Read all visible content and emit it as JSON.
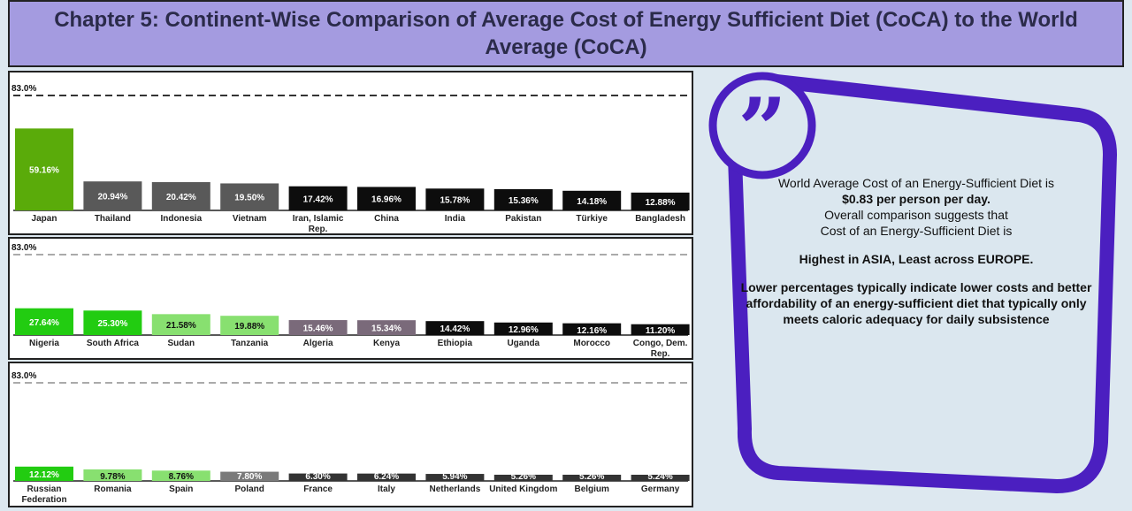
{
  "title": "Chapter 5: Continent-Wise Comparison of Average Cost of Energy Sufficient Diet (CoCA) to the World Average (CoCA)",
  "colors": {
    "title_bg": "#a49be0",
    "accent_purple": "#4b1fc0",
    "reference_line": "#333333"
  },
  "chart_data": [
    {
      "type": "bar",
      "reference_line": {
        "value": 83.0,
        "label": "83.0%"
      },
      "ylim": [
        0,
        83
      ],
      "categories": [
        "Japan",
        "Thailand",
        "Indonesia",
        "Vietnam",
        "Iran, Islamic Rep.",
        "China",
        "India",
        "Pakistan",
        "Türkiye",
        "Bangladesh"
      ],
      "values": [
        59.16,
        20.94,
        20.42,
        19.5,
        17.42,
        16.96,
        15.78,
        15.36,
        14.18,
        12.88
      ],
      "labels": [
        "59.16%",
        "20.94%",
        "20.42%",
        "19.50%",
        "17.42%",
        "16.96%",
        "15.78%",
        "15.36%",
        "14.18%",
        "12.88%"
      ],
      "bar_colors": [
        "#5aab0a",
        "#595959",
        "#595959",
        "#595959",
        "#0d0d0d",
        "#0d0d0d",
        "#0d0d0d",
        "#0d0d0d",
        "#0d0d0d",
        "#0d0d0d"
      ]
    },
    {
      "type": "bar",
      "reference_line": {
        "value": 83.0,
        "label": "83.0%"
      },
      "ylim": [
        0,
        83
      ],
      "categories": [
        "Nigeria",
        "South Africa",
        "Sudan",
        "Tanzania",
        "Algeria",
        "Kenya",
        "Ethiopia",
        "Uganda",
        "Morocco",
        "Congo, Dem. Rep."
      ],
      "values": [
        27.64,
        25.3,
        21.58,
        19.88,
        15.46,
        15.34,
        14.42,
        12.96,
        12.16,
        11.2
      ],
      "labels": [
        "27.64%",
        "25.30%",
        "21.58%",
        "19.88%",
        "15.46%",
        "15.34%",
        "14.42%",
        "12.96%",
        "12.16%",
        "11.20%"
      ],
      "bar_colors": [
        "#22cc11",
        "#22cc11",
        "#88e070",
        "#88e070",
        "#7a6a7a",
        "#7a6a7a",
        "#0d0d0d",
        "#0d0d0d",
        "#0d0d0d",
        "#0d0d0d"
      ]
    },
    {
      "type": "bar",
      "reference_line": {
        "value": 83.0,
        "label": "83.0%"
      },
      "ylim": [
        0,
        83
      ],
      "categories": [
        "Russian Federation",
        "Romania",
        "Spain",
        "Poland",
        "France",
        "Italy",
        "Netherlands",
        "United Kingdom",
        "Belgium",
        "Germany"
      ],
      "values": [
        12.12,
        9.78,
        8.76,
        7.8,
        6.3,
        6.24,
        5.94,
        5.26,
        5.26,
        5.24
      ],
      "labels": [
        "12.12%",
        "9.78%",
        "8.76%",
        "7.80%",
        "6.30%",
        "6.24%",
        "5.94%",
        "5.26%",
        "5.26%",
        "5.24%"
      ],
      "bar_colors": [
        "#22cc11",
        "#88e070",
        "#88e070",
        "#7a7a7a",
        "#333333",
        "#333333",
        "#333333",
        "#333333",
        "#333333",
        "#333333"
      ]
    }
  ],
  "quote": {
    "icon": "quote-mark-icon",
    "line1": "World Average Cost of an Energy-Sufficient Diet is",
    "line2": "$0.83 per person per day.",
    "line3": "Overall comparison suggests that",
    "line4": "Cost of an Energy-Sufficient Diet is",
    "line5": "Highest in ASIA, Least across EUROPE.",
    "line6": "Lower percentages typically indicate lower costs and better affordability of an energy-sufficient diet that typically only meets caloric adequacy for daily subsistence"
  }
}
